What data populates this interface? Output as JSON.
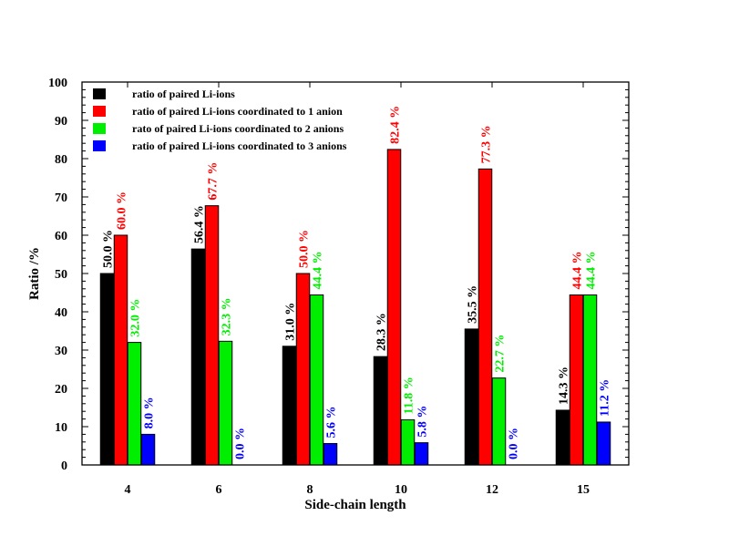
{
  "chart_data": {
    "type": "bar",
    "title": "",
    "xlabel": "Side-chain length",
    "ylabel": "Ratio /%",
    "ylim": [
      0,
      100
    ],
    "yticks": [
      0,
      10,
      20,
      30,
      40,
      50,
      60,
      70,
      80,
      90,
      100
    ],
    "grid": false,
    "legend_position": "top-left",
    "categories": [
      "4",
      "6",
      "8",
      "10",
      "12",
      "15"
    ],
    "series": [
      {
        "name": "ratio of paired Li-ions",
        "color": "#000000",
        "values": [
          50.0,
          56.4,
          31.0,
          28.3,
          35.5,
          14.3
        ],
        "labels": [
          "50.0 %",
          "56.4 %",
          "31.0 %",
          "28.3 %",
          "35.5 %",
          "14.3 %"
        ]
      },
      {
        "name": "ratio of paired Li-ions coordinated to 1 anion",
        "color": "#ff0000",
        "values": [
          60.0,
          67.7,
          50.0,
          82.4,
          77.3,
          44.4
        ],
        "labels": [
          "60.0 %",
          "67.7 %",
          "50.0 %",
          "82.4 %",
          "77.3 %",
          "44.4 %"
        ]
      },
      {
        "name": "rato of paired Li-ions coordinated to 2 anions",
        "color": "#00ee00",
        "values": [
          32.0,
          32.3,
          44.4,
          11.8,
          22.7,
          44.4
        ],
        "labels": [
          "32.0 %",
          "32.3 %",
          "44.4 %",
          "11.8 %",
          "22.7 %",
          "44.4 %"
        ]
      },
      {
        "name": "ratio of paired Li-ions coordinated to 3 anions",
        "color": "#0000ff",
        "values": [
          8.0,
          0.0,
          5.6,
          5.8,
          0.0,
          11.2
        ],
        "labels": [
          "8.0 %",
          "0.0 %",
          "5.6 %",
          "5.8 %",
          "0.0 %",
          "11.2 %"
        ]
      }
    ]
  }
}
